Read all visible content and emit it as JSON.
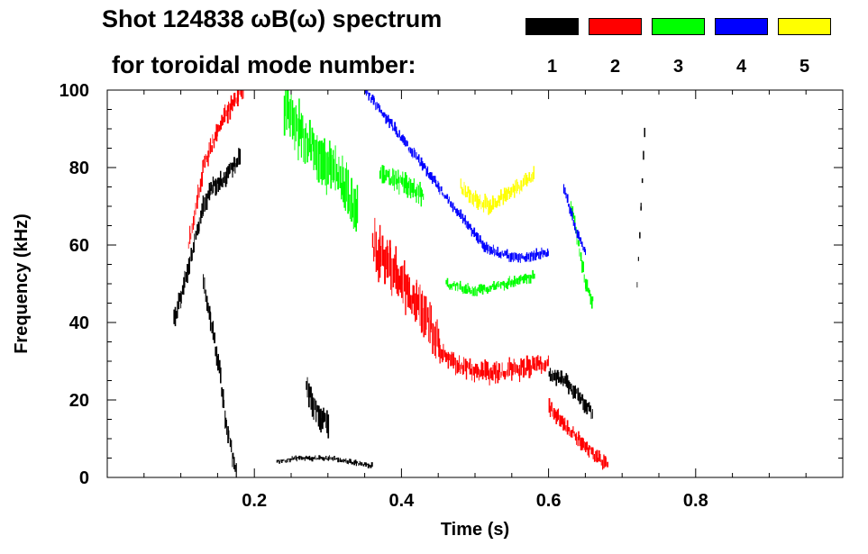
{
  "title_line1": "Shot 124838 ωB(ω) spectrum",
  "title_line2": "for toroidal mode number:",
  "legend": [
    {
      "label": "1",
      "color": "#000000"
    },
    {
      "label": "2",
      "color": "#ff0000"
    },
    {
      "label": "3",
      "color": "#00ff00"
    },
    {
      "label": "4",
      "color": "#0000ff"
    },
    {
      "label": "5",
      "color": "#ffff00"
    }
  ],
  "chart_data": {
    "type": "scatter",
    "title": "Shot 124838 ωB(ω) spectrum for toroidal mode number: 1 2 3 4 5",
    "xlabel": "Time (s)",
    "ylabel": "Frequency (kHz)",
    "xlim": [
      0.0,
      1.0
    ],
    "ylim": [
      0,
      100
    ],
    "xticks": [
      0.2,
      0.4,
      0.6,
      0.8
    ],
    "xtick_labels": [
      "0.2",
      "0.4",
      "0.6",
      "0.8"
    ],
    "yticks": [
      0,
      20,
      40,
      60,
      80,
      100
    ],
    "ytick_labels": [
      "0",
      "20",
      "40",
      "60",
      "80",
      "100"
    ],
    "grid": false,
    "legend_position": "top-right",
    "series": [
      {
        "name": "1",
        "color": "#000000",
        "traces": [
          {
            "x": [
              0.09,
              0.1,
              0.11,
              0.12,
              0.13,
              0.14,
              0.15,
              0.16,
              0.17,
              0.18
            ],
            "y": [
              41,
              47,
              54,
              62,
              70,
              75,
              76,
              77,
              80,
              83
            ],
            "spread": 4
          },
          {
            "x": [
              0.13,
              0.14,
              0.15,
              0.16,
              0.17,
              0.175
            ],
            "y": [
              50,
              40,
              30,
              15,
              5,
              2
            ],
            "spread": 4
          },
          {
            "x": [
              0.27,
              0.28,
              0.29,
              0.3
            ],
            "y": [
              24,
              18,
              15,
              14
            ],
            "spread": 5
          },
          {
            "x": [
              0.23,
              0.26,
              0.3,
              0.33,
              0.36
            ],
            "y": [
              4,
              5,
              5,
              4,
              3
            ],
            "spread": 1
          },
          {
            "x": [
              0.6,
              0.62,
              0.64,
              0.66
            ],
            "y": [
              27,
              25,
              21,
              16
            ],
            "spread": 3
          },
          {
            "x": [
              0.72,
              0.725,
              0.73
            ],
            "y": [
              50,
              70,
              90
            ],
            "spread": 2
          }
        ]
      },
      {
        "name": "2",
        "color": "#ff0000",
        "traces": [
          {
            "x": [
              0.11,
              0.13,
              0.15,
              0.17,
              0.185
            ],
            "y": [
              60,
              80,
              90,
              97,
              100
            ],
            "spread": 4
          },
          {
            "x": [
              0.36,
              0.37,
              0.38,
              0.39,
              0.4,
              0.41,
              0.42,
              0.43,
              0.44,
              0.45
            ],
            "y": [
              60,
              58,
              56,
              53,
              50,
              48,
              45,
              42,
              39,
              35
            ],
            "spread": 9
          },
          {
            "x": [
              0.45,
              0.47,
              0.5,
              0.53,
              0.56,
              0.58,
              0.6
            ],
            "y": [
              33,
              30,
              27,
              27,
              28,
              29,
              30
            ],
            "spread": 4
          },
          {
            "x": [
              0.6,
              0.62,
              0.64,
              0.66,
              0.68
            ],
            "y": [
              18,
              14,
              10,
              6,
              3
            ],
            "spread": 3
          }
        ]
      },
      {
        "name": "3",
        "color": "#00ff00",
        "traces": [
          {
            "x": [
              0.37,
              0.39,
              0.41,
              0.43
            ],
            "y": [
              78,
              77,
              75,
              73
            ],
            "spread": 4
          },
          {
            "x": [
              0.46,
              0.48,
              0.5,
              0.52,
              0.54,
              0.56,
              0.58
            ],
            "y": [
              50,
              49,
              48,
              49,
              50,
              51,
              52
            ],
            "spread": 2
          },
          {
            "x": [
              0.24,
              0.26,
              0.28,
              0.3,
              0.32,
              0.34
            ],
            "y": [
              95,
              90,
              85,
              80,
              75,
              70
            ],
            "spread": 10
          },
          {
            "x": [
              0.63,
              0.64,
              0.65,
              0.66
            ],
            "y": [
              70,
              60,
              50,
              45
            ],
            "spread": 3
          }
        ]
      },
      {
        "name": "4",
        "color": "#0000ff",
        "traces": [
          {
            "x": [
              0.35,
              0.37,
              0.39,
              0.41,
              0.43,
              0.45,
              0.47,
              0.49,
              0.51,
              0.53,
              0.55,
              0.57,
              0.59,
              0.6
            ],
            "y": [
              100,
              95,
              90,
              85,
              80,
              75,
              70,
              65,
              60,
              58,
              57,
              57,
              58,
              58
            ],
            "spread": 2
          },
          {
            "x": [
              0.62,
              0.63,
              0.64,
              0.65
            ],
            "y": [
              75,
              68,
              62,
              58
            ],
            "spread": 2
          }
        ]
      },
      {
        "name": "5",
        "color": "#ffff00",
        "traces": [
          {
            "x": [
              0.48,
              0.5,
              0.52,
              0.54,
              0.56,
              0.58
            ],
            "y": [
              75,
              72,
              70,
              73,
              75,
              78
            ],
            "spread": 3
          }
        ]
      }
    ]
  }
}
